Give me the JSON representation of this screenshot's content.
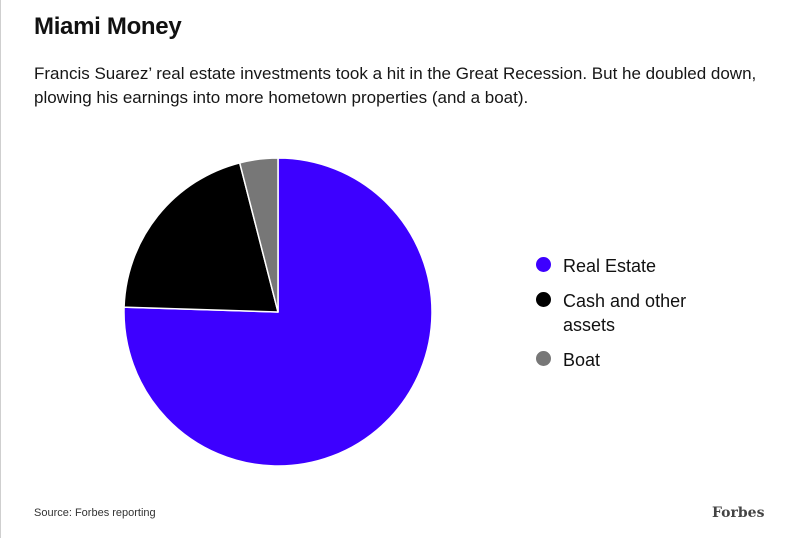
{
  "header": {
    "title": "Miami Money",
    "subtitle": "Francis Suarez’ real estate investments took a hit in the Great Recession. But he doubled down, plowing his earnings into more hometown properties (and a boat)."
  },
  "chart_data": {
    "type": "pie",
    "title": "Miami Money",
    "series": [
      {
        "name": "Real Estate",
        "value": 75.5,
        "color": "#3d00ff"
      },
      {
        "name": "Cash and other assets",
        "value": 20.5,
        "color": "#000000"
      },
      {
        "name": "Boat",
        "value": 4.0,
        "color": "#777777"
      }
    ],
    "legend_position": "right"
  },
  "footer": {
    "source": "Source: Forbes reporting",
    "brand": "Forbes"
  }
}
